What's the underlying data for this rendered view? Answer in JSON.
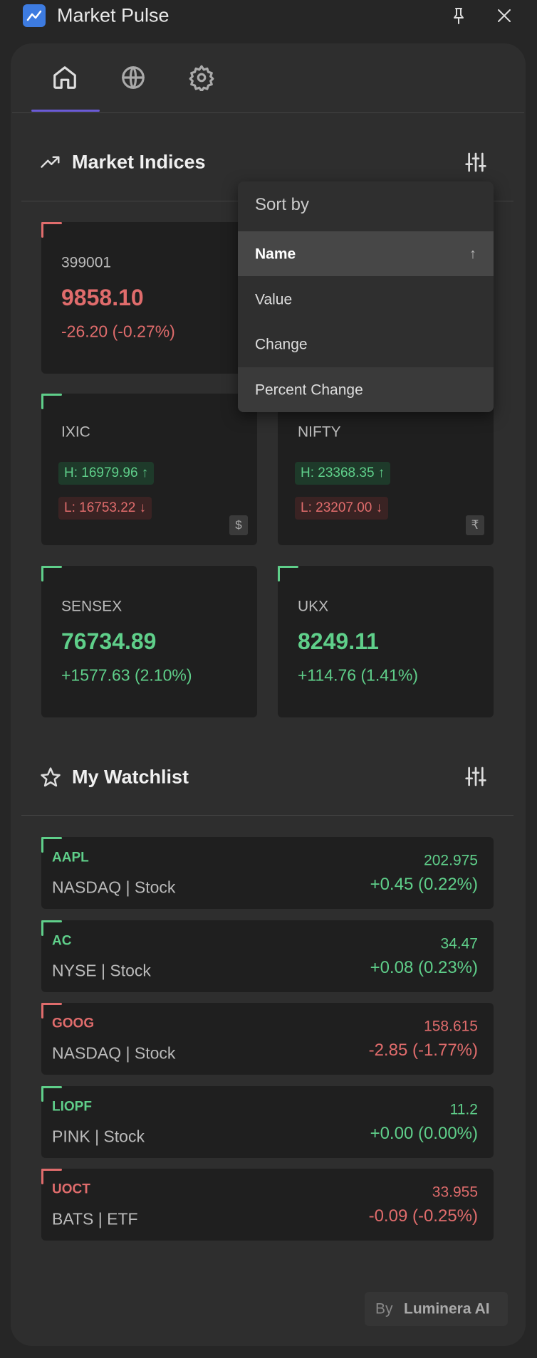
{
  "header": {
    "title": "Market Pulse"
  },
  "indices": {
    "title": "Market Indices",
    "cards": [
      {
        "symbol": "399001",
        "value": "9858.10",
        "change": "-26.20 (-0.27%)",
        "trend": "down"
      },
      {
        "symbol": "IXIC",
        "high": "H: 16979.96 ↑",
        "low": "L: 16753.22 ↓",
        "currency": "$",
        "trend": "up"
      },
      {
        "symbol": "NIFTY",
        "high": "H: 23368.35 ↑",
        "low": "L: 23207.00 ↓",
        "currency": "₹",
        "trend": "up"
      },
      {
        "symbol": "SENSEX",
        "value": "76734.89",
        "change": "+1577.63 (2.10%)",
        "trend": "up"
      },
      {
        "symbol": "UKX",
        "value": "8249.11",
        "change": "+114.76 (1.41%)",
        "trend": "up"
      }
    ]
  },
  "sort_menu": {
    "title": "Sort by",
    "options": [
      {
        "label": "Name",
        "selected": true,
        "arrow": "↑"
      },
      {
        "label": "Value"
      },
      {
        "label": "Change"
      },
      {
        "label": "Percent Change",
        "hovered": true
      }
    ]
  },
  "watchlist": {
    "title": "My Watchlist",
    "items": [
      {
        "symbol": "AAPL",
        "exchange": "NASDAQ | Stock",
        "price": "202.975",
        "change": "+0.45 (0.22%)",
        "trend": "up"
      },
      {
        "symbol": "AC",
        "exchange": "NYSE | Stock",
        "price": "34.47",
        "change": "+0.08 (0.23%)",
        "trend": "up"
      },
      {
        "symbol": "GOOG",
        "exchange": "NASDAQ | Stock",
        "price": "158.615",
        "change": "-2.85 (-1.77%)",
        "trend": "down"
      },
      {
        "symbol": "LIOPF",
        "exchange": "PINK | Stock",
        "price": "11.2",
        "change": "+0.00 (0.00%)",
        "trend": "up"
      },
      {
        "symbol": "UOCT",
        "exchange": "BATS | ETF",
        "price": "33.955",
        "change": "-0.09 (-0.25%)",
        "trend": "down"
      }
    ]
  },
  "footer": {
    "prefix": "By",
    "brand": "Luminera AI"
  }
}
